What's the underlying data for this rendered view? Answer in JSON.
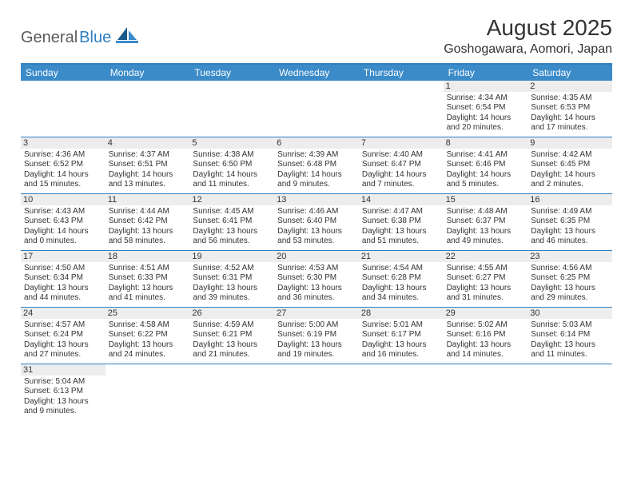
{
  "logo": {
    "text1": "General",
    "text2": "Blue"
  },
  "title": "August 2025",
  "location": "Goshogawara, Aomori, Japan",
  "colors": {
    "header_bar": "#3b8bc9",
    "rule": "#2f7fc2",
    "daynum_bg": "#ededed",
    "text": "#333333",
    "logo_gray": "#5a5a5a",
    "logo_blue": "#2f7fc2",
    "sail_dark": "#1a5a8a",
    "sail_light": "#3b8bc9"
  },
  "dow": [
    "Sunday",
    "Monday",
    "Tuesday",
    "Wednesday",
    "Thursday",
    "Friday",
    "Saturday"
  ],
  "weeks": [
    [
      null,
      null,
      null,
      null,
      null,
      {
        "n": "1",
        "rise": "4:34 AM",
        "set": "6:54 PM",
        "dl": "14 hours and 20 minutes."
      },
      {
        "n": "2",
        "rise": "4:35 AM",
        "set": "6:53 PM",
        "dl": "14 hours and 17 minutes."
      }
    ],
    [
      {
        "n": "3",
        "rise": "4:36 AM",
        "set": "6:52 PM",
        "dl": "14 hours and 15 minutes."
      },
      {
        "n": "4",
        "rise": "4:37 AM",
        "set": "6:51 PM",
        "dl": "14 hours and 13 minutes."
      },
      {
        "n": "5",
        "rise": "4:38 AM",
        "set": "6:50 PM",
        "dl": "14 hours and 11 minutes."
      },
      {
        "n": "6",
        "rise": "4:39 AM",
        "set": "6:48 PM",
        "dl": "14 hours and 9 minutes."
      },
      {
        "n": "7",
        "rise": "4:40 AM",
        "set": "6:47 PM",
        "dl": "14 hours and 7 minutes."
      },
      {
        "n": "8",
        "rise": "4:41 AM",
        "set": "6:46 PM",
        "dl": "14 hours and 5 minutes."
      },
      {
        "n": "9",
        "rise": "4:42 AM",
        "set": "6:45 PM",
        "dl": "14 hours and 2 minutes."
      }
    ],
    [
      {
        "n": "10",
        "rise": "4:43 AM",
        "set": "6:43 PM",
        "dl": "14 hours and 0 minutes."
      },
      {
        "n": "11",
        "rise": "4:44 AM",
        "set": "6:42 PM",
        "dl": "13 hours and 58 minutes."
      },
      {
        "n": "12",
        "rise": "4:45 AM",
        "set": "6:41 PM",
        "dl": "13 hours and 56 minutes."
      },
      {
        "n": "13",
        "rise": "4:46 AM",
        "set": "6:40 PM",
        "dl": "13 hours and 53 minutes."
      },
      {
        "n": "14",
        "rise": "4:47 AM",
        "set": "6:38 PM",
        "dl": "13 hours and 51 minutes."
      },
      {
        "n": "15",
        "rise": "4:48 AM",
        "set": "6:37 PM",
        "dl": "13 hours and 49 minutes."
      },
      {
        "n": "16",
        "rise": "4:49 AM",
        "set": "6:35 PM",
        "dl": "13 hours and 46 minutes."
      }
    ],
    [
      {
        "n": "17",
        "rise": "4:50 AM",
        "set": "6:34 PM",
        "dl": "13 hours and 44 minutes."
      },
      {
        "n": "18",
        "rise": "4:51 AM",
        "set": "6:33 PM",
        "dl": "13 hours and 41 minutes."
      },
      {
        "n": "19",
        "rise": "4:52 AM",
        "set": "6:31 PM",
        "dl": "13 hours and 39 minutes."
      },
      {
        "n": "20",
        "rise": "4:53 AM",
        "set": "6:30 PM",
        "dl": "13 hours and 36 minutes."
      },
      {
        "n": "21",
        "rise": "4:54 AM",
        "set": "6:28 PM",
        "dl": "13 hours and 34 minutes."
      },
      {
        "n": "22",
        "rise": "4:55 AM",
        "set": "6:27 PM",
        "dl": "13 hours and 31 minutes."
      },
      {
        "n": "23",
        "rise": "4:56 AM",
        "set": "6:25 PM",
        "dl": "13 hours and 29 minutes."
      }
    ],
    [
      {
        "n": "24",
        "rise": "4:57 AM",
        "set": "6:24 PM",
        "dl": "13 hours and 27 minutes."
      },
      {
        "n": "25",
        "rise": "4:58 AM",
        "set": "6:22 PM",
        "dl": "13 hours and 24 minutes."
      },
      {
        "n": "26",
        "rise": "4:59 AM",
        "set": "6:21 PM",
        "dl": "13 hours and 21 minutes."
      },
      {
        "n": "27",
        "rise": "5:00 AM",
        "set": "6:19 PM",
        "dl": "13 hours and 19 minutes."
      },
      {
        "n": "28",
        "rise": "5:01 AM",
        "set": "6:17 PM",
        "dl": "13 hours and 16 minutes."
      },
      {
        "n": "29",
        "rise": "5:02 AM",
        "set": "6:16 PM",
        "dl": "13 hours and 14 minutes."
      },
      {
        "n": "30",
        "rise": "5:03 AM",
        "set": "6:14 PM",
        "dl": "13 hours and 11 minutes."
      }
    ],
    [
      {
        "n": "31",
        "rise": "5:04 AM",
        "set": "6:13 PM",
        "dl": "13 hours and 9 minutes."
      },
      null,
      null,
      null,
      null,
      null,
      null
    ]
  ],
  "labels": {
    "sunrise": "Sunrise: ",
    "sunset": "Sunset: ",
    "daylight": "Daylight: "
  }
}
